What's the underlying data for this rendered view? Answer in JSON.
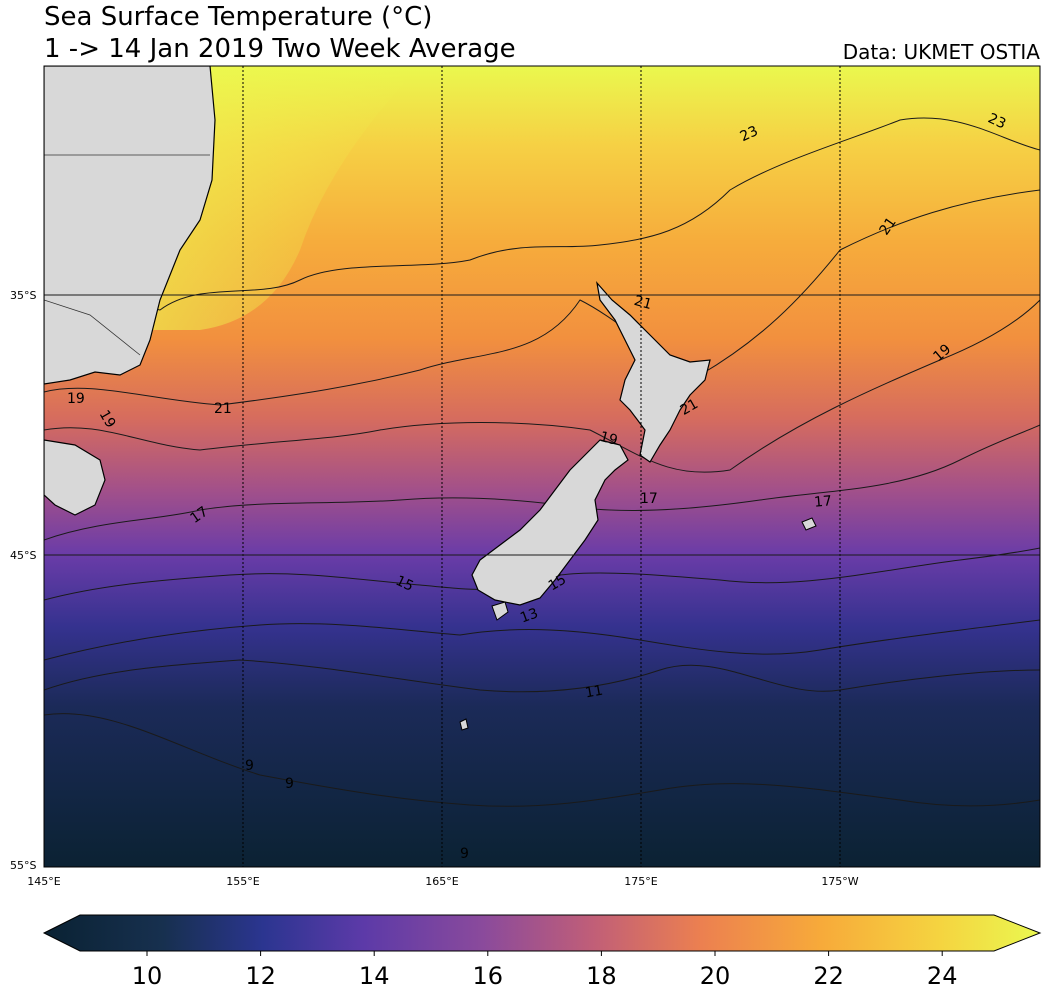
{
  "header": {
    "title": "Sea Surface Temperature (°C)",
    "subtitle": "1 -> 14 Jan 2019 Two Week Average",
    "credit": "Data: UKMET OSTIA"
  },
  "map": {
    "lat_labels": [
      "35°S",
      "45°S",
      "55°S"
    ],
    "lon_labels": [
      "145°E",
      "155°E",
      "165°E",
      "175°E",
      "175°W"
    ],
    "contour_labels": [
      "23",
      "23",
      "21",
      "21",
      "21",
      "21",
      "19",
      "19",
      "19",
      "19",
      "17",
      "17",
      "17",
      "15",
      "15",
      "13",
      "11",
      "9",
      "9",
      "9"
    ],
    "colors": {
      "land": "#d8d8d8",
      "gridline": "#000000",
      "coastline": "#000000"
    }
  },
  "colorbar": {
    "ticks": [
      "10",
      "12",
      "14",
      "16",
      "18",
      "20",
      "22",
      "24"
    ],
    "extend": "both",
    "colors": [
      "#0a2233",
      "#17304f",
      "#2b3590",
      "#5c3aa8",
      "#8a4a9c",
      "#c05e78",
      "#ec8050",
      "#f7aa3a",
      "#f5d440",
      "#eaf850"
    ]
  }
}
